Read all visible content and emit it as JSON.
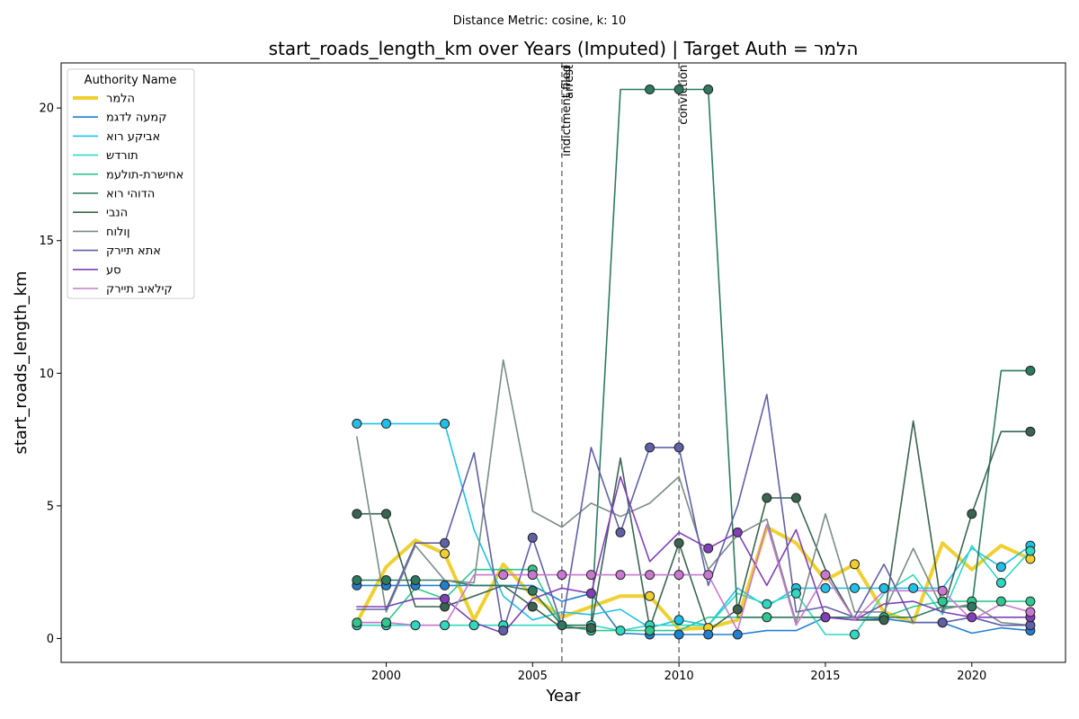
{
  "suptitle": "Distance Metric: cosine, k: 10",
  "chart_data": {
    "type": "line",
    "title": "start_roads_length_km over Years (Imputed) | Target Auth = הלמר",
    "xlabel": "Year",
    "ylabel": "start_roads_length_km",
    "xlim": [
      1988.9,
      2023.2
    ],
    "ylim": [
      -0.9,
      21.7
    ],
    "xticks": [
      2000,
      2005,
      2010,
      2015,
      2020
    ],
    "yticks": [
      0,
      5,
      10,
      15,
      20
    ],
    "x": [
      1999,
      2000,
      2001,
      2002,
      2003,
      2004,
      2005,
      2006,
      2007,
      2008,
      2009,
      2010,
      2011,
      2012,
      2013,
      2014,
      2015,
      2016,
      2017,
      2018,
      2019,
      2020,
      2021,
      2022
    ],
    "legend_title": "Authority Name",
    "legend_position": "upper left",
    "events": [
      {
        "x": 2006,
        "labels": [
          "indictment filed",
          "arrest"
        ]
      },
      {
        "x": 2010,
        "labels": [
          "conviction"
        ]
      }
    ],
    "series": [
      {
        "name": "הלמר",
        "color": "#f0d030",
        "width": 4,
        "values": [
          0.6,
          2.7,
          3.7,
          3.2,
          0.7,
          2.8,
          1.6,
          0.8,
          1.2,
          1.6,
          1.6,
          0.35,
          0.4,
          0.7,
          4.2,
          3.6,
          2.2,
          2.8,
          1.0,
          0.6,
          3.6,
          2.6,
          3.5,
          3.0
        ],
        "markers": [
          false,
          false,
          false,
          true,
          false,
          false,
          false,
          false,
          false,
          false,
          true,
          false,
          true,
          false,
          false,
          false,
          false,
          true,
          false,
          false,
          false,
          false,
          false,
          true
        ]
      },
      {
        "name": "קמעה לדגמ",
        "color": "#2080d0",
        "width": 1.6,
        "values": [
          2.0,
          2.0,
          2.0,
          2.0,
          2.0,
          2.0,
          2.0,
          1.4,
          1.7,
          0.2,
          0.15,
          0.15,
          0.15,
          0.15,
          0.3,
          0.3,
          0.8,
          0.7,
          0.75,
          0.6,
          0.6,
          0.2,
          0.4,
          0.3
        ],
        "markers": [
          true,
          true,
          true,
          true,
          false,
          false,
          false,
          false,
          false,
          false,
          true,
          true,
          true,
          true,
          false,
          false,
          false,
          false,
          false,
          false,
          true,
          false,
          false,
          true
        ]
      },
      {
        "name": "אביקע רוא",
        "color": "#20c0e8",
        "width": 1.6,
        "values": [
          8.1,
          8.1,
          8.1,
          8.1,
          4.1,
          1.6,
          0.7,
          1.0,
          0.9,
          1.1,
          0.4,
          0.7,
          0.5,
          1.9,
          1.2,
          1.9,
          1.9,
          1.9,
          1.9,
          1.9,
          1.9,
          3.4,
          2.7,
          3.5
        ],
        "markers": [
          true,
          true,
          false,
          true,
          false,
          false,
          false,
          false,
          false,
          false,
          false,
          true,
          false,
          false,
          false,
          true,
          true,
          true,
          true,
          true,
          false,
          false,
          true,
          true
        ]
      },
      {
        "name": "תורדש",
        "color": "#30d8c0",
        "width": 1.6,
        "values": [
          0.5,
          0.5,
          0.5,
          0.5,
          0.5,
          0.5,
          0.5,
          0.5,
          0.5,
          0.3,
          0.5,
          0.5,
          0.5,
          1.7,
          1.3,
          1.7,
          0.15,
          0.15,
          1.7,
          2.4,
          0.9,
          3.5,
          2.1,
          3.3
        ],
        "markers": [
          true,
          true,
          true,
          true,
          true,
          true,
          false,
          false,
          true,
          true,
          true,
          false,
          false,
          false,
          true,
          true,
          false,
          true,
          false,
          false,
          false,
          false,
          true,
          true
        ]
      },
      {
        "name": "אחישרת-תולעמ",
        "color": "#30c890",
        "width": 1.6,
        "values": [
          0.6,
          0.6,
          1.9,
          1.5,
          2.6,
          2.6,
          2.6,
          0.5,
          0.3,
          0.3,
          0.3,
          0.3,
          0.8,
          0.8,
          0.8,
          0.8,
          0.8,
          0.8,
          0.8,
          1.2,
          1.4,
          1.4,
          1.4,
          1.4
        ],
        "markers": [
          true,
          true,
          false,
          false,
          false,
          false,
          true,
          false,
          true,
          false,
          true,
          false,
          false,
          false,
          true,
          false,
          true,
          false,
          true,
          false,
          true,
          true,
          true,
          true
        ]
      },
      {
        "name": "הדוהי רוא",
        "color": "#2e7a60",
        "width": 1.6,
        "values": [
          2.2,
          2.2,
          2.2,
          2.2,
          2.0,
          2.0,
          1.8,
          0.5,
          0.5,
          20.7,
          20.7,
          20.7,
          20.7,
          0.8,
          0.8,
          0.8,
          0.8,
          0.8,
          0.8,
          0.8,
          1.2,
          1.2,
          10.1,
          10.1
        ],
        "markers": [
          true,
          true,
          true,
          false,
          false,
          false,
          true,
          true,
          false,
          false,
          true,
          true,
          true,
          false,
          false,
          false,
          false,
          false,
          false,
          false,
          false,
          true,
          false,
          true
        ]
      },
      {
        "name": "הנבי",
        "color": "#3a6450",
        "width": 1.6,
        "values": [
          4.7,
          4.7,
          1.2,
          1.2,
          1.6,
          2.0,
          1.2,
          0.4,
          0.4,
          6.8,
          0.4,
          3.6,
          0.3,
          1.1,
          5.3,
          5.3,
          2.6,
          0.7,
          0.7,
          8.2,
          1.0,
          4.7,
          7.8,
          7.8
        ],
        "markers": [
          true,
          true,
          false,
          true,
          false,
          false,
          true,
          false,
          true,
          false,
          false,
          true,
          false,
          true,
          true,
          true,
          false,
          false,
          true,
          false,
          false,
          true,
          false,
          true
        ]
      },
      {
        "name": "ןולוח",
        "color": "#7a8c86",
        "width": 1.6,
        "values": [
          7.6,
          1.0,
          3.5,
          2.2,
          2.1,
          10.5,
          4.8,
          4.2,
          5.1,
          4.6,
          5.1,
          6.1,
          2.6,
          3.9,
          4.5,
          0.6,
          4.7,
          1.0,
          1.0,
          3.4,
          1.1,
          1.3,
          0.6,
          0.5
        ],
        "markers": [
          false,
          false,
          false,
          false,
          false,
          false,
          false,
          false,
          false,
          false,
          false,
          false,
          false,
          false,
          false,
          false,
          false,
          false,
          false,
          false,
          false,
          false,
          false,
          false
        ]
      },
      {
        "name": "אתא תיירק",
        "color": "#6060a8",
        "width": 1.6,
        "values": [
          1.1,
          1.1,
          3.6,
          3.6,
          7.0,
          0.3,
          3.8,
          0.5,
          7.2,
          4.0,
          7.2,
          7.2,
          2.0,
          5.0,
          9.2,
          1.0,
          1.2,
          0.8,
          2.8,
          0.6,
          0.6,
          0.8,
          0.5,
          0.5
        ],
        "markers": [
          false,
          false,
          false,
          true,
          false,
          true,
          true,
          false,
          false,
          true,
          true,
          true,
          false,
          false,
          false,
          false,
          false,
          false,
          false,
          false,
          true,
          false,
          false,
          true
        ]
      },
      {
        "name": "סע",
        "color": "#8040b8",
        "width": 1.6,
        "values": [
          1.2,
          1.2,
          1.5,
          1.5,
          0.6,
          0.2,
          1.5,
          1.9,
          1.7,
          6.1,
          2.9,
          4.0,
          3.4,
          4.0,
          2.0,
          4.1,
          0.8,
          0.7,
          1.3,
          1.4,
          1.0,
          0.8,
          0.8,
          0.8
        ],
        "markers": [
          false,
          false,
          false,
          true,
          false,
          false,
          false,
          false,
          true,
          false,
          false,
          false,
          true,
          true,
          false,
          false,
          true,
          false,
          false,
          false,
          false,
          true,
          false,
          true
        ]
      },
      {
        "name": "קילאיב תיירק",
        "color": "#c878d0",
        "width": 1.6,
        "values": [
          0.6,
          0.6,
          0.5,
          0.5,
          2.4,
          2.4,
          2.4,
          2.4,
          2.4,
          2.4,
          2.4,
          2.4,
          2.4,
          0.3,
          4.3,
          0.5,
          2.4,
          0.7,
          1.8,
          1.8,
          1.8,
          0.7,
          1.3,
          1.0
        ],
        "markers": [
          false,
          false,
          false,
          false,
          false,
          true,
          true,
          true,
          true,
          true,
          true,
          true,
          true,
          false,
          false,
          false,
          true,
          false,
          false,
          false,
          true,
          false,
          false,
          true
        ]
      }
    ]
  }
}
